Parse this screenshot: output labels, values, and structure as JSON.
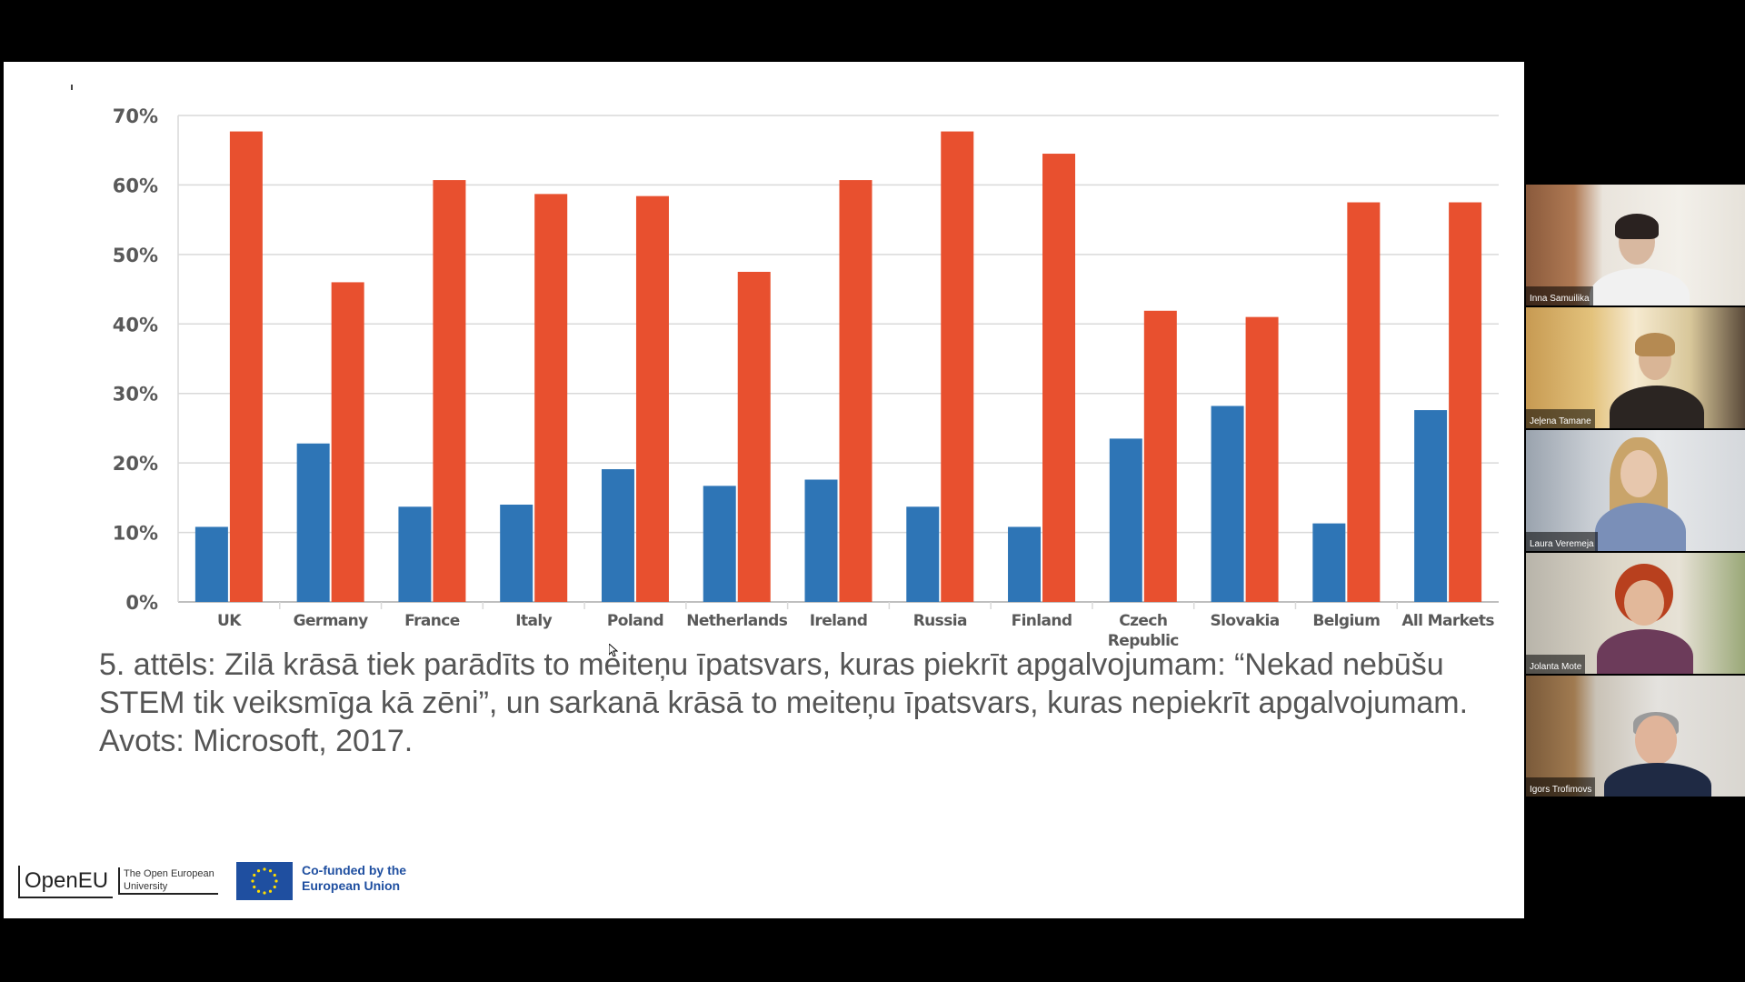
{
  "chart_data": {
    "type": "bar",
    "categories": [
      "UK",
      "Germany",
      "France",
      "Italy",
      "Poland",
      "Netherlands",
      "Ireland",
      "Russia",
      "Finland",
      "Czech\nRepublic",
      "Slovakia",
      "Belgium",
      "All Markets"
    ],
    "series": [
      {
        "values": [
          10.8,
          22.8,
          13.7,
          14.0,
          19.1,
          16.7,
          17.6,
          13.7,
          10.8,
          23.5,
          28.2,
          11.3,
          27.6
        ]
      },
      {
        "values": [
          67.7,
          46.0,
          60.7,
          58.7,
          58.4,
          47.5,
          60.7,
          67.7,
          64.5,
          41.9,
          41.0,
          57.5,
          57.5
        ]
      }
    ],
    "y_ticks": [
      "0%",
      "10%",
      "20%",
      "30%",
      "40%",
      "50%",
      "60%",
      "70%"
    ],
    "ylim": [
      0,
      70
    ],
    "grid": true,
    "colors": [
      "#2e75b6",
      "#e8502f"
    ]
  },
  "slide": {
    "caption": "5. attēls: Zilā krāsā tiek parādīts to meiteņu īpatsvars, kuras piekrīt apgalvojumam: “Nekad nebūšu STEM tik veiksmīga kā zēni”, un sarkanā krāsā to meiteņu īpatsvars, kuras nepiekrīt apgalvojumam. Avots: Microsoft, 2017.",
    "logo_openeu": "OpenEU",
    "logo_openeu_sub": "The Open European University",
    "logo_eu": "Co-funded by the European Union"
  },
  "participants": [
    {
      "name": "Inna Samuilika"
    },
    {
      "name": "Jeļena Tamane"
    },
    {
      "name": "Laura Veremeja"
    },
    {
      "name": "Jolanta Mote"
    },
    {
      "name": "Igors Trofimovs"
    }
  ]
}
